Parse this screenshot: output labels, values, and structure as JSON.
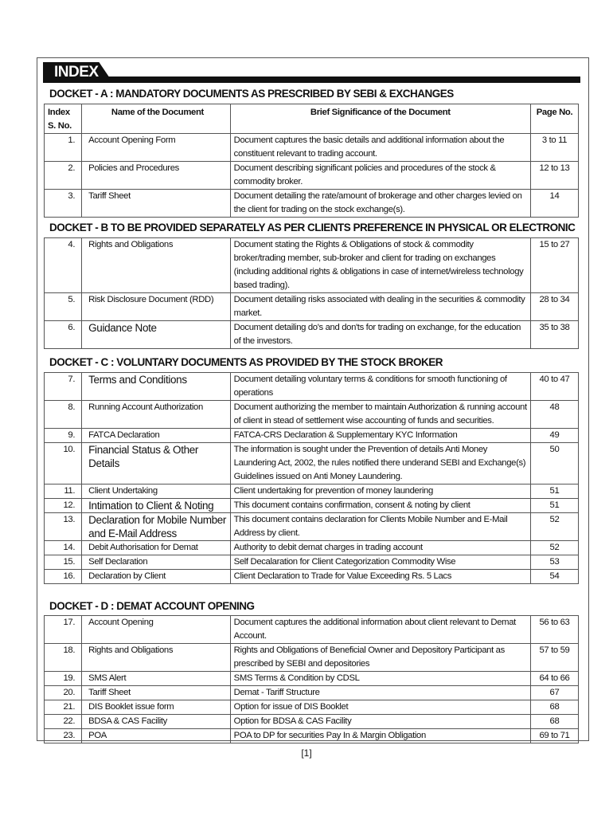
{
  "index_title": "INDEX",
  "headers": {
    "sno": "Index S. No.",
    "name": "Name of the Document",
    "desc": "Brief Significance of the Document",
    "page": "Page No."
  },
  "dockets": [
    {
      "title": "DOCKET - A : MANDATORY DOCUMENTS AS PRESCRIBED BY SEBI & EXCHANGES",
      "rows": [
        {
          "no": "1.",
          "name": "Account Opening Form",
          "desc": "Document captures the basic details and additional information about the constituent relevant to trading account.",
          "page": "3 to 11"
        },
        {
          "no": "2.",
          "name": "Policies and Procedures",
          "desc": "Document describing significant policies and procedures of the stock & commodity broker.",
          "page": "12 to 13"
        },
        {
          "no": "3.",
          "name": "Tariff Sheet",
          "desc": "Document detailing the rate/amount of brokerage and other charges levied on the client for trading on the stock exchange(s).",
          "page": "14"
        }
      ]
    },
    {
      "title": "DOCKET - B TO BE PROVIDED SEPARATELY AS PER CLIENTS PREFERENCE IN PHYSICAL OR ELECTRONIC",
      "rows": [
        {
          "no": "4.",
          "name": "Rights and Obligations",
          "desc": "Document stating the Rights & Obligations of stock & commodity broker/trading member, sub-broker and client for trading on exchanges (including additional rights & obligations in case of internet/wireless technology based trading).",
          "page": "15 to 27"
        },
        {
          "no": "5.",
          "name": "Risk Disclosure Document (RDD)",
          "desc": "Document detailing risks associated with dealing in the securities & commodity market.",
          "page": "28 to 34"
        },
        {
          "no": "6.",
          "name": "Guidance Note",
          "desc": "Document detailing do's and don'ts for trading on exchange, for the education of the investors.",
          "page": "35 to 38"
        }
      ]
    },
    {
      "title": "DOCKET - C : VOLUNTARY DOCUMENTS AS PROVIDED BY THE STOCK BROKER",
      "rows": [
        {
          "no": "7.",
          "name": "Terms and Conditions",
          "desc": "Document detailing voluntary terms & conditions for smooth functioning of operations",
          "page": "40 to 47"
        },
        {
          "no": "8.",
          "name": "Running Account Authorization",
          "desc": "Document authorizing the member to maintain Authorization & running account of client in stead of settlement wise accounting of funds and securities.",
          "page": "48"
        },
        {
          "no": "9.",
          "name": "FATCA Declaration",
          "desc": "FATCA-CRS Declaration & Supplementary KYC Information",
          "page": "49"
        },
        {
          "no": "10.",
          "name": "Financial Status & Other Details",
          "desc": "The information is sought under the Prevention of details Anti Money Laundering Act, 2002, the rules notified there underand SEBI and Exchange(s) Guidelines issued on Anti Money Laundering.",
          "page": "50"
        },
        {
          "no": "11.",
          "name": "Client Undertaking",
          "desc": "Client undertaking for prevention of money laundering",
          "page": "51"
        },
        {
          "no": "12.",
          "name": "Intimation to Client & Noting",
          "desc": "This document contains confirmation, consent & noting by client",
          "page": "51"
        },
        {
          "no": "13.",
          "name": "Declaration for Mobile Number and E-Mail Address",
          "desc": "This document contains declaration for Clients Mobile Number and E-Mail Address by client.",
          "page": "52"
        },
        {
          "no": "14.",
          "name": "Debit Authorisation for Demat",
          "desc": "Authority to debit demat charges in trading account",
          "page": "52"
        },
        {
          "no": "15.",
          "name": "Self Declaration",
          "desc": "Self Decalaration for Client Categorization Commodity Wise",
          "page": "53"
        },
        {
          "no": "16.",
          "name": "Declaration by Client",
          "desc": "Client Declaration to Trade for Value Exceeding Rs. 5 Lacs",
          "page": "54"
        }
      ]
    },
    {
      "title": "DOCKET - D : DEMAT ACCOUNT OPENING",
      "rows": [
        {
          "no": "17.",
          "name": "Account Opening",
          "desc": "Document captures the additional information about client relevant to Demat Account.",
          "page": "56 to 63"
        },
        {
          "no": "18.",
          "name": "Rights and Obligations",
          "desc": "Rights and Obligations of Beneficial Owner and Depository Participant as prescribed by SEBI and depositories",
          "page": "57 to 59"
        },
        {
          "no": "19.",
          "name": "SMS Alert",
          "desc": "SMS Terms & Condition by CDSL",
          "page": "64 to 66"
        },
        {
          "no": "20.",
          "name": "Tariff Sheet",
          "desc": "Demat - Tariff Structure",
          "page": "67"
        },
        {
          "no": "21.",
          "name": "DIS Booklet issue form",
          "desc": "Option for issue of DIS Booklet",
          "page": "68"
        },
        {
          "no": "22.",
          "name": "BDSA & CAS Facility",
          "desc": "Option for BDSA & CAS Facility",
          "page": "68"
        },
        {
          "no": "23.",
          "name": "POA",
          "desc": "POA to DP for securities Pay In & Margin Obligation",
          "page": "69 to 71"
        }
      ]
    }
  ],
  "page_number": "[1]"
}
